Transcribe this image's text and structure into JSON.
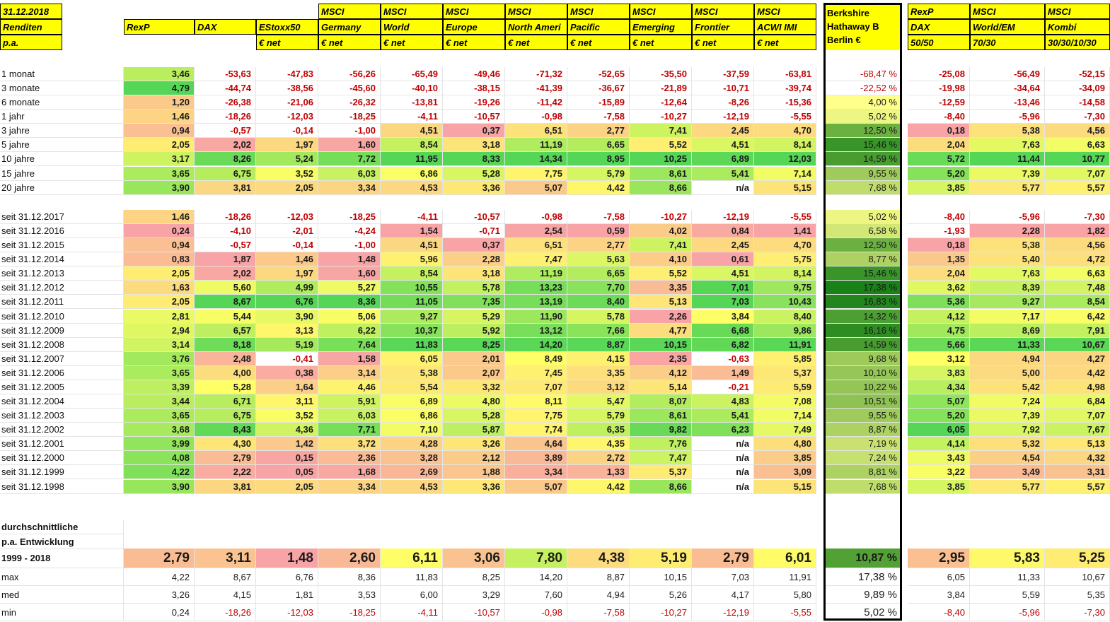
{
  "corner": [
    "31.12.2018",
    "Renditen",
    "p.a."
  ],
  "columns": [
    {
      "r2": "RexP"
    },
    {
      "r2": "DAX"
    },
    {
      "r2": "EStoxx50",
      "r3": "€ net"
    },
    {
      "r1": "MSCI",
      "r2": "Germany",
      "r3": "€ net"
    },
    {
      "r1": "MSCI",
      "r2": "World",
      "r3": "€ net"
    },
    {
      "r1": "MSCI",
      "r2": "Europe",
      "r3": "€ net"
    },
    {
      "r1": "MSCI",
      "r2": "North Ameri",
      "r3": "€ net"
    },
    {
      "r1": "MSCI",
      "r2": "Pacific",
      "r3": "€ net"
    },
    {
      "r1": "MSCI",
      "r2": "Emerging",
      "r3": "€ net"
    },
    {
      "r1": "MSCI",
      "r2": "Frontier",
      "r3": "€ net"
    },
    {
      "r1": "MSCI",
      "r2": "ACWI IMI",
      "r3": "€ net"
    },
    {
      "r1": "Berkshire",
      "r2": "Hathaway B",
      "r3": "Berlin €"
    },
    {
      "r1": "RexP",
      "r2": "DAX",
      "r3": "50/50"
    },
    {
      "r1": "MSCI",
      "r2": "World/EM",
      "r3": "70/30"
    },
    {
      "r1": "MSCI",
      "r2": "Kombi",
      "r3": "30/30/10/30"
    }
  ],
  "periods": [
    {
      "label": "1 monat",
      "values": [
        "3,46",
        "-53,63",
        "-47,83",
        "-56,26",
        "-65,49",
        "-49,46",
        "-71,32",
        "-52,65",
        "-35,50",
        "-37,59",
        "-63,81",
        "-68,47 %",
        "-25,08",
        "-56,49",
        "-52,15"
      ]
    },
    {
      "label": "3 monate",
      "values": [
        "4,79",
        "-44,74",
        "-38,56",
        "-45,60",
        "-40,10",
        "-38,15",
        "-41,39",
        "-36,67",
        "-21,89",
        "-10,71",
        "-39,74",
        "-22,52 %",
        "-19,98",
        "-34,64",
        "-34,09"
      ]
    },
    {
      "label": "6 monate",
      "values": [
        "1,20",
        "-26,38",
        "-21,06",
        "-26,32",
        "-13,81",
        "-19,26",
        "-11,42",
        "-15,89",
        "-12,64",
        "-8,26",
        "-15,36",
        "4,00 %",
        "-12,59",
        "-13,46",
        "-14,58"
      ]
    },
    {
      "label": "1 jahr",
      "values": [
        "1,46",
        "-18,26",
        "-12,03",
        "-18,25",
        "-4,11",
        "-10,57",
        "-0,98",
        "-7,58",
        "-10,27",
        "-12,19",
        "-5,55",
        "5,02 %",
        "-8,40",
        "-5,96",
        "-7,30"
      ]
    },
    {
      "label": "3 jahre",
      "values": [
        "0,94",
        "-0,57",
        "-0,14",
        "-1,00",
        "4,51",
        "0,37",
        "6,51",
        "2,77",
        "7,41",
        "2,45",
        "4,70",
        "12,50 %",
        "0,18",
        "5,38",
        "4,56"
      ]
    },
    {
      "label": "5 jahre",
      "values": [
        "2,05",
        "2,02",
        "1,97",
        "1,60",
        "8,54",
        "3,18",
        "11,19",
        "6,65",
        "5,52",
        "4,51",
        "8,14",
        "15,46 %",
        "2,04",
        "7,63",
        "6,63"
      ]
    },
    {
      "label": "10 jahre",
      "values": [
        "3,17",
        "8,26",
        "5,24",
        "7,72",
        "11,95",
        "8,33",
        "14,34",
        "8,95",
        "10,25",
        "6,89",
        "12,03",
        "14,59 %",
        "5,72",
        "11,44",
        "10,77"
      ]
    },
    {
      "label": "15 jahre",
      "values": [
        "3,65",
        "6,75",
        "3,52",
        "6,03",
        "6,86",
        "5,28",
        "7,75",
        "5,79",
        "8,61",
        "5,41",
        "7,14",
        "9,55 %",
        "5,20",
        "7,39",
        "7,07"
      ]
    },
    {
      "label": "20 jahre",
      "values": [
        "3,90",
        "3,81",
        "2,05",
        "3,34",
        "4,53",
        "3,36",
        "5,07",
        "4,42",
        "8,66",
        "n/a",
        "5,15",
        "7,68 %",
        "3,85",
        "5,77",
        "5,57"
      ]
    }
  ],
  "since": [
    {
      "label": "seit 31.12.2017",
      "values": [
        "1,46",
        "-18,26",
        "-12,03",
        "-18,25",
        "-4,11",
        "-10,57",
        "-0,98",
        "-7,58",
        "-10,27",
        "-12,19",
        "-5,55",
        "5,02 %",
        "-8,40",
        "-5,96",
        "-7,30"
      ]
    },
    {
      "label": "seit 31.12.2016",
      "values": [
        "0,24",
        "-4,10",
        "-2,01",
        "-4,24",
        "1,54",
        "-0,71",
        "2,54",
        "0,59",
        "4,02",
        "0,84",
        "1,41",
        "6,58 %",
        "-1,93",
        "2,28",
        "1,82"
      ]
    },
    {
      "label": "seit 31.12.2015",
      "values": [
        "0,94",
        "-0,57",
        "-0,14",
        "-1,00",
        "4,51",
        "0,37",
        "6,51",
        "2,77",
        "7,41",
        "2,45",
        "4,70",
        "12,50 %",
        "0,18",
        "5,38",
        "4,56"
      ]
    },
    {
      "label": "seit 31.12.2014",
      "values": [
        "0,83",
        "1,87",
        "1,46",
        "1,48",
        "5,96",
        "2,28",
        "7,47",
        "5,63",
        "4,10",
        "0,61",
        "5,75",
        "8,77 %",
        "1,35",
        "5,40",
        "4,72"
      ]
    },
    {
      "label": "seit 31.12.2013",
      "values": [
        "2,05",
        "2,02",
        "1,97",
        "1,60",
        "8,54",
        "3,18",
        "11,19",
        "6,65",
        "5,52",
        "4,51",
        "8,14",
        "15,46 %",
        "2,04",
        "7,63",
        "6,63"
      ]
    },
    {
      "label": "seit 31.12.2012",
      "values": [
        "1,63",
        "5,60",
        "4,99",
        "5,27",
        "10,55",
        "5,78",
        "13,23",
        "7,70",
        "3,35",
        "7,01",
        "9,75",
        "17,38 %",
        "3,62",
        "8,39",
        "7,48"
      ]
    },
    {
      "label": "seit 31.12.2011",
      "values": [
        "2,05",
        "8,67",
        "6,76",
        "8,36",
        "11,05",
        "7,35",
        "13,19",
        "8,40",
        "5,13",
        "7,03",
        "10,43",
        "16,83 %",
        "5,36",
        "9,27",
        "8,54"
      ]
    },
    {
      "label": "seit 31.12.2010",
      "values": [
        "2,81",
        "5,44",
        "3,90",
        "5,06",
        "9,27",
        "5,29",
        "11,90",
        "5,78",
        "2,26",
        "3,84",
        "8,40",
        "14,32 %",
        "4,12",
        "7,17",
        "6,42"
      ]
    },
    {
      "label": "seit 31.12.2009",
      "values": [
        "2,94",
        "6,57",
        "3,13",
        "6,22",
        "10,37",
        "5,92",
        "13,12",
        "7,66",
        "4,77",
        "6,68",
        "9,86",
        "16,16 %",
        "4,75",
        "8,69",
        "7,91"
      ]
    },
    {
      "label": "seit 31.12.2008",
      "values": [
        "3,14",
        "8,18",
        "5,19",
        "7,64",
        "11,83",
        "8,25",
        "14,20",
        "8,87",
        "10,15",
        "6,82",
        "11,91",
        "14,59 %",
        "5,66",
        "11,33",
        "10,67"
      ]
    },
    {
      "label": "seit 31.12.2007",
      "values": [
        "3,76",
        "2,48",
        "-0,41",
        "1,58",
        "6,05",
        "2,01",
        "8,49",
        "4,15",
        "2,35",
        "-0,63",
        "5,85",
        "9,68 %",
        "3,12",
        "4,94",
        "4,27"
      ]
    },
    {
      "label": "seit 31.12.2006",
      "values": [
        "3,65",
        "4,00",
        "0,38",
        "3,14",
        "5,38",
        "2,07",
        "7,45",
        "3,35",
        "4,12",
        "1,49",
        "5,37",
        "10,10 %",
        "3,83",
        "5,00",
        "4,42"
      ]
    },
    {
      "label": "seit 31.12.2005",
      "values": [
        "3,39",
        "5,28",
        "1,64",
        "4,46",
        "5,54",
        "3,32",
        "7,07",
        "3,12",
        "5,14",
        "-0,21",
        "5,59",
        "10,22 %",
        "4,34",
        "5,42",
        "4,98"
      ]
    },
    {
      "label": "seit 31.12.2004",
      "values": [
        "3,44",
        "6,71",
        "3,11",
        "5,91",
        "6,89",
        "4,80",
        "8,11",
        "5,47",
        "8,07",
        "4,83",
        "7,08",
        "10,51 %",
        "5,07",
        "7,24",
        "6,84"
      ]
    },
    {
      "label": "seit 31.12.2003",
      "values": [
        "3,65",
        "6,75",
        "3,52",
        "6,03",
        "6,86",
        "5,28",
        "7,75",
        "5,79",
        "8,61",
        "5,41",
        "7,14",
        "9,55 %",
        "5,20",
        "7,39",
        "7,07"
      ]
    },
    {
      "label": "seit 31.12.2002",
      "values": [
        "3,68",
        "8,43",
        "4,36",
        "7,71",
        "7,10",
        "5,87",
        "7,74",
        "6,35",
        "9,82",
        "6,23",
        "7,49",
        "8,87 %",
        "6,05",
        "7,92",
        "7,67"
      ]
    },
    {
      "label": "seit 31.12.2001",
      "values": [
        "3,99",
        "4,30",
        "1,42",
        "3,72",
        "4,28",
        "3,26",
        "4,64",
        "4,35",
        "7,76",
        "n/a",
        "4,80",
        "7,19 %",
        "4,14",
        "5,32",
        "5,13"
      ]
    },
    {
      "label": "seit 31.12.2000",
      "values": [
        "4,08",
        "2,79",
        "0,15",
        "2,36",
        "3,28",
        "2,12",
        "3,89",
        "2,72",
        "7,47",
        "n/a",
        "3,85",
        "7,24 %",
        "3,43",
        "4,54",
        "4,32"
      ]
    },
    {
      "label": "seit 31.12.1999",
      "values": [
        "4,22",
        "2,22",
        "0,05",
        "1,68",
        "2,69",
        "1,88",
        "3,34",
        "1,33",
        "5,37",
        "n/a",
        "3,09",
        "8,81 %",
        "3,22",
        "3,49",
        "3,31"
      ]
    },
    {
      "label": "seit 31.12.1998",
      "values": [
        "3,90",
        "3,81",
        "2,05",
        "3,34",
        "4,53",
        "3,36",
        "5,07",
        "4,42",
        "8,66",
        "n/a",
        "5,15",
        "7,68 %",
        "3,85",
        "5,77",
        "5,57"
      ]
    }
  ],
  "summary": {
    "title": [
      "durchschnittliche",
      "p.a. Entwicklung"
    ],
    "average": {
      "label": "1999 - 2018",
      "values": [
        "2,79",
        "3,11",
        "1,48",
        "2,60",
        "6,11",
        "3,06",
        "7,80",
        "4,38",
        "5,19",
        "2,79",
        "6,01",
        "10,87 %",
        "2,95",
        "5,83",
        "5,25"
      ]
    },
    "stats": [
      {
        "label": "max",
        "values": [
          "4,22",
          "8,67",
          "6,76",
          "8,36",
          "11,83",
          "8,25",
          "14,20",
          "8,87",
          "10,15",
          "7,03",
          "11,91",
          "17,38 %",
          "6,05",
          "11,33",
          "10,67"
        ]
      },
      {
        "label": "med",
        "values": [
          "3,26",
          "4,15",
          "1,81",
          "3,53",
          "6,00",
          "3,29",
          "7,60",
          "4,94",
          "5,26",
          "4,17",
          "5,80",
          "9,89 %",
          "3,84",
          "5,59",
          "5,35"
        ]
      },
      {
        "label": "min",
        "values": [
          "0,24",
          "-18,26",
          "-12,03",
          "-18,25",
          "-4,11",
          "-10,57",
          "-0,98",
          "-7,58",
          "-10,27",
          "-12,19",
          "-5,55",
          "5,02 %",
          "-8,40",
          "-5,96",
          "-7,30"
        ]
      }
    ]
  }
}
